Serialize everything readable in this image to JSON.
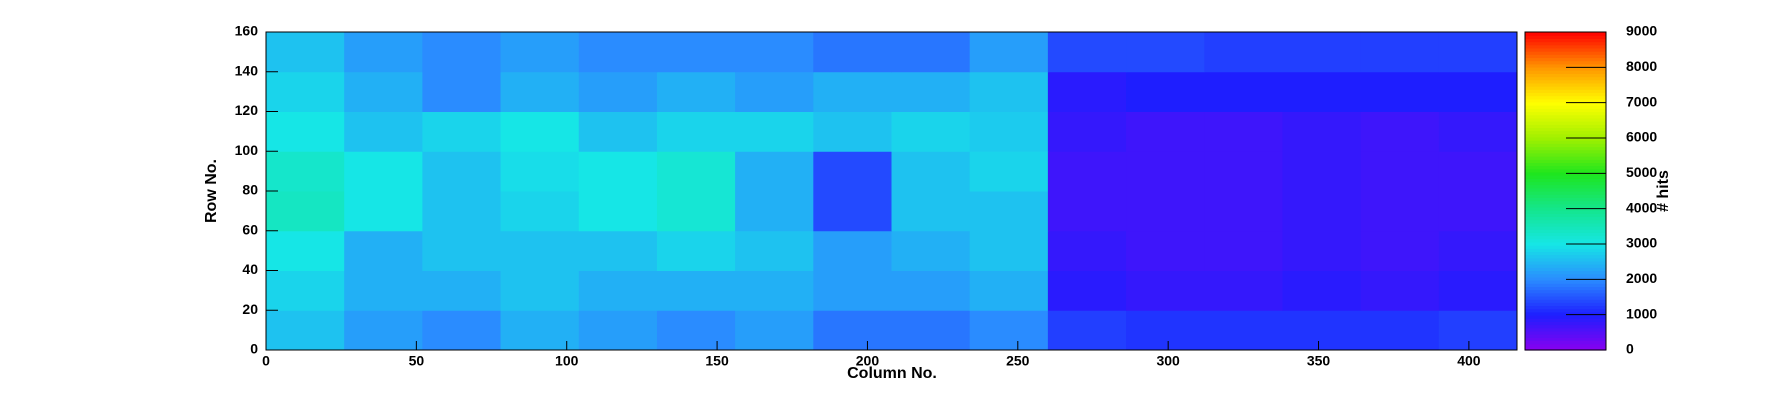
{
  "chart_data": {
    "type": "heatmap",
    "xlabel": "Column No.",
    "ylabel": "Row No.",
    "zlabel": "# hits",
    "xbins": [
      0,
      26,
      52,
      78,
      104,
      130,
      156,
      182,
      208,
      234,
      260,
      286,
      312,
      338,
      364,
      390,
      416
    ],
    "ybins": [
      0,
      20,
      40,
      60,
      80,
      100,
      120,
      140,
      160
    ],
    "z": [
      [
        2600,
        2200,
        2000,
        2400,
        2200,
        2000,
        2200,
        1800,
        1800,
        2000,
        1300,
        1200,
        1200,
        1200,
        1200,
        1300
      ],
      [
        2800,
        2400,
        2400,
        2600,
        2400,
        2400,
        2400,
        2200,
        2200,
        2400,
        900,
        800,
        800,
        900,
        800,
        900
      ],
      [
        3000,
        2400,
        2600,
        2600,
        2600,
        2800,
        2600,
        2200,
        2400,
        2600,
        800,
        700,
        700,
        800,
        700,
        800
      ],
      [
        3400,
        3000,
        2600,
        2800,
        3000,
        3200,
        2400,
        1400,
        2600,
        2600,
        700,
        700,
        700,
        800,
        700,
        700
      ],
      [
        3300,
        3000,
        2600,
        2900,
        3000,
        3200,
        2400,
        1400,
        2600,
        2800,
        700,
        700,
        700,
        800,
        700,
        700
      ],
      [
        3000,
        2600,
        2800,
        3000,
        2600,
        2800,
        2800,
        2600,
        2800,
        2700,
        800,
        700,
        700,
        800,
        700,
        800
      ],
      [
        2800,
        2400,
        2000,
        2400,
        2200,
        2400,
        2200,
        2400,
        2400,
        2600,
        900,
        1000,
        1000,
        1000,
        1000,
        1000
      ],
      [
        2600,
        2200,
        2000,
        2200,
        2000,
        2000,
        2000,
        1800,
        1800,
        2200,
        1400,
        1400,
        1300,
        1300,
        1300,
        1300
      ]
    ],
    "xlim": [
      0,
      416
    ],
    "xticks": [
      0,
      50,
      100,
      150,
      200,
      250,
      300,
      350,
      400
    ],
    "ylim": [
      0,
      160
    ],
    "yticks": [
      0,
      20,
      40,
      60,
      80,
      100,
      120,
      140,
      160
    ],
    "zlim": [
      0,
      9000
    ],
    "zticks": [
      0,
      1000,
      2000,
      3000,
      4000,
      5000,
      6000,
      7000,
      8000,
      9000
    ],
    "colorscale": [
      "#8a00f0",
      "#1e1eff",
      "#2a8cff",
      "#16e6e6",
      "#14e68c",
      "#1ee61e",
      "#a0f000",
      "#ffff00",
      "#ff9600",
      "#ff0000"
    ]
  }
}
